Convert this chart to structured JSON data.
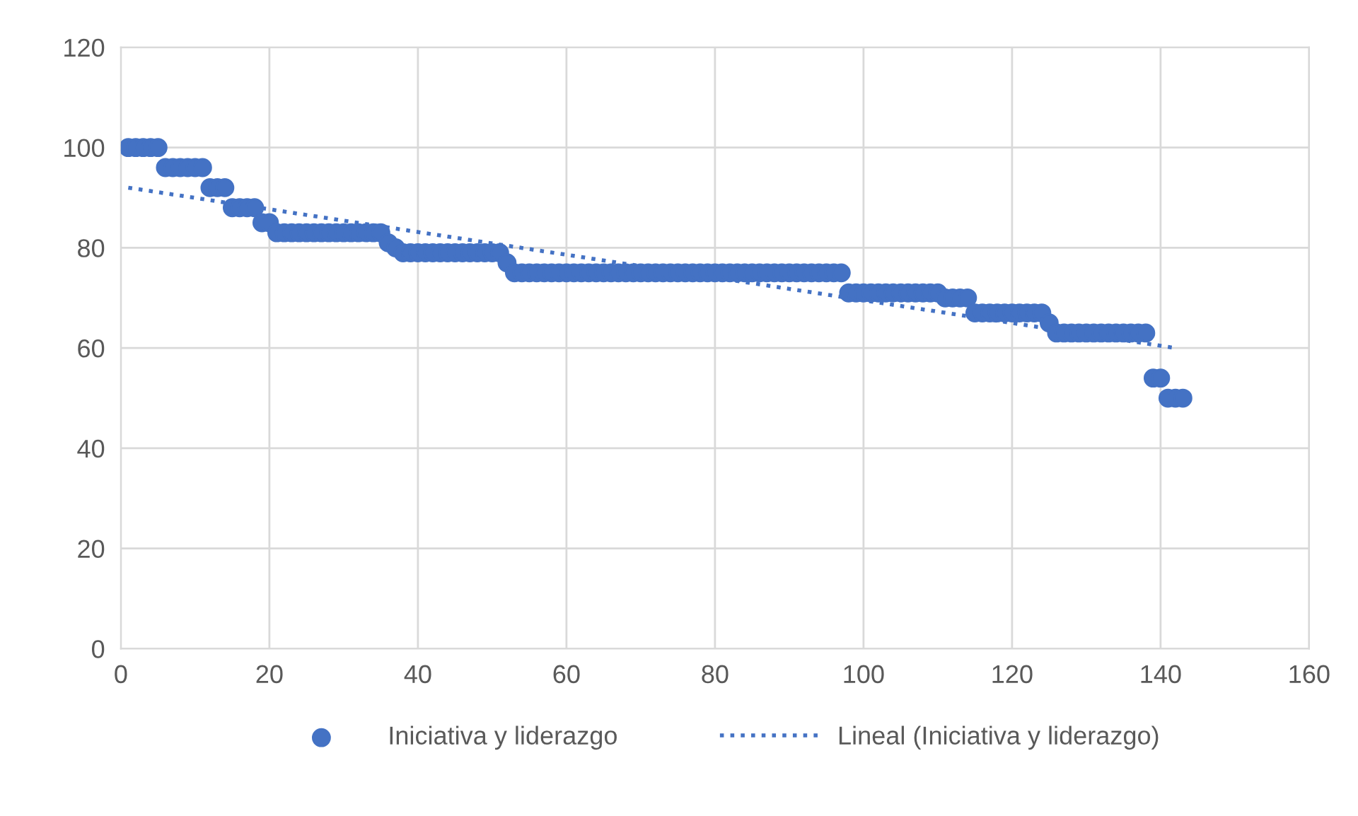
{
  "chart_data": {
    "type": "scatter",
    "series": [
      {
        "name": "Iniciativa y liderazgo",
        "color": "#4472c4",
        "marker": "circle",
        "x": [
          1,
          2,
          3,
          4,
          5,
          6,
          7,
          8,
          9,
          10,
          11,
          12,
          13,
          14,
          15,
          16,
          17,
          18,
          19,
          20,
          21,
          22,
          23,
          24,
          25,
          26,
          27,
          28,
          29,
          30,
          31,
          32,
          33,
          34,
          35,
          36,
          37,
          38,
          39,
          40,
          41,
          42,
          43,
          44,
          45,
          46,
          47,
          48,
          49,
          50,
          51,
          52,
          53,
          54,
          55,
          56,
          57,
          58,
          59,
          60,
          61,
          62,
          63,
          64,
          65,
          66,
          67,
          68,
          69,
          70,
          71,
          72,
          73,
          74,
          75,
          76,
          77,
          78,
          79,
          80,
          81,
          82,
          83,
          84,
          85,
          86,
          87,
          88,
          89,
          90,
          91,
          92,
          93,
          94,
          95,
          96,
          97,
          98,
          99,
          100,
          101,
          102,
          103,
          104,
          105,
          106,
          107,
          108,
          109,
          110,
          111,
          112,
          113,
          114,
          115,
          116,
          117,
          118,
          119,
          120,
          121,
          122,
          123,
          124,
          125,
          126,
          127,
          128,
          129,
          130,
          131,
          132,
          133,
          134,
          135,
          136,
          137,
          138,
          139,
          140,
          141,
          142,
          143
        ],
        "values": [
          100,
          100,
          100,
          100,
          100,
          96,
          96,
          96,
          96,
          96,
          96,
          92,
          92,
          92,
          88,
          88,
          88,
          88,
          85,
          85,
          83,
          83,
          83,
          83,
          83,
          83,
          83,
          83,
          83,
          83,
          83,
          83,
          83,
          83,
          83,
          81,
          80,
          79,
          79,
          79,
          79,
          79,
          79,
          79,
          79,
          79,
          79,
          79,
          79,
          79,
          79,
          77,
          75,
          75,
          75,
          75,
          75,
          75,
          75,
          75,
          75,
          75,
          75,
          75,
          75,
          75,
          75,
          75,
          75,
          75,
          75,
          75,
          75,
          75,
          75,
          75,
          75,
          75,
          75,
          75,
          75,
          75,
          75,
          75,
          75,
          75,
          75,
          75,
          75,
          75,
          75,
          75,
          75,
          75,
          75,
          75,
          75,
          71,
          71,
          71,
          71,
          71,
          71,
          71,
          71,
          71,
          71,
          71,
          71,
          71,
          70,
          70,
          70,
          70,
          67,
          67,
          67,
          67,
          67,
          67,
          67,
          67,
          67,
          67,
          65,
          63,
          63,
          63,
          63,
          63,
          63,
          63,
          63,
          63,
          63,
          63,
          63,
          63,
          54,
          54,
          50,
          50,
          50
        ]
      },
      {
        "name": "Lineal (Iniciativa y liderazgo)",
        "type": "line",
        "color": "#4472c4",
        "line_style": "dotted",
        "marker": "none",
        "x": [
          1,
          142
        ],
        "values": [
          92,
          60
        ]
      }
    ],
    "xlim": [
      0,
      160
    ],
    "xticks": [
      0,
      20,
      40,
      60,
      80,
      100,
      120,
      140,
      160
    ],
    "ylim": [
      0,
      120
    ],
    "yticks": [
      0,
      20,
      40,
      60,
      80,
      100,
      120
    ],
    "grid": true,
    "legend": "bottom"
  }
}
